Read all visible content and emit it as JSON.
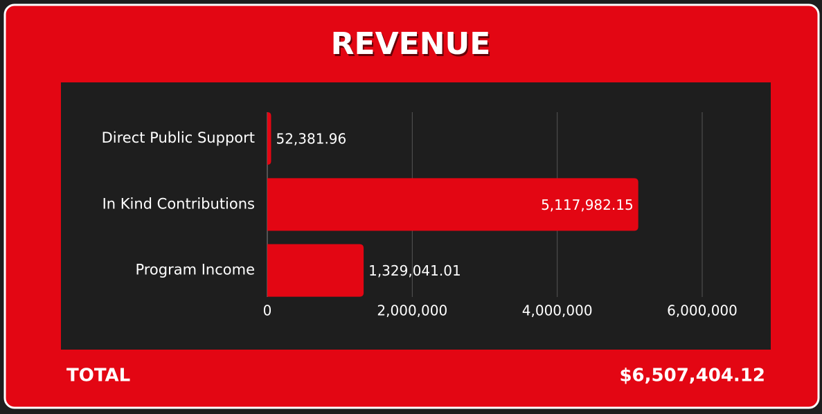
{
  "chart_data": {
    "type": "bar",
    "orientation": "horizontal",
    "title": "REVENUE",
    "categories": [
      "Direct Public Support",
      "In Kind Contributions",
      "Program Income"
    ],
    "values": [
      52381.96,
      5117982.15,
      1329041.01
    ],
    "value_labels": [
      "52,381.96",
      "5,117,982.15",
      "1,329,041.01"
    ],
    "color": "#e30613",
    "xlim": [
      0,
      6000000
    ],
    "xticks": [
      0,
      {
        "value": 2000000,
        "label": "2,000,000"
      },
      {
        "value": 4000000,
        "label": "4,000,000"
      },
      {
        "value": 6000000,
        "label": "6,000,000"
      }
    ],
    "grid": true,
    "total_label": "TOTAL",
    "total": "$6,507,404.12"
  }
}
